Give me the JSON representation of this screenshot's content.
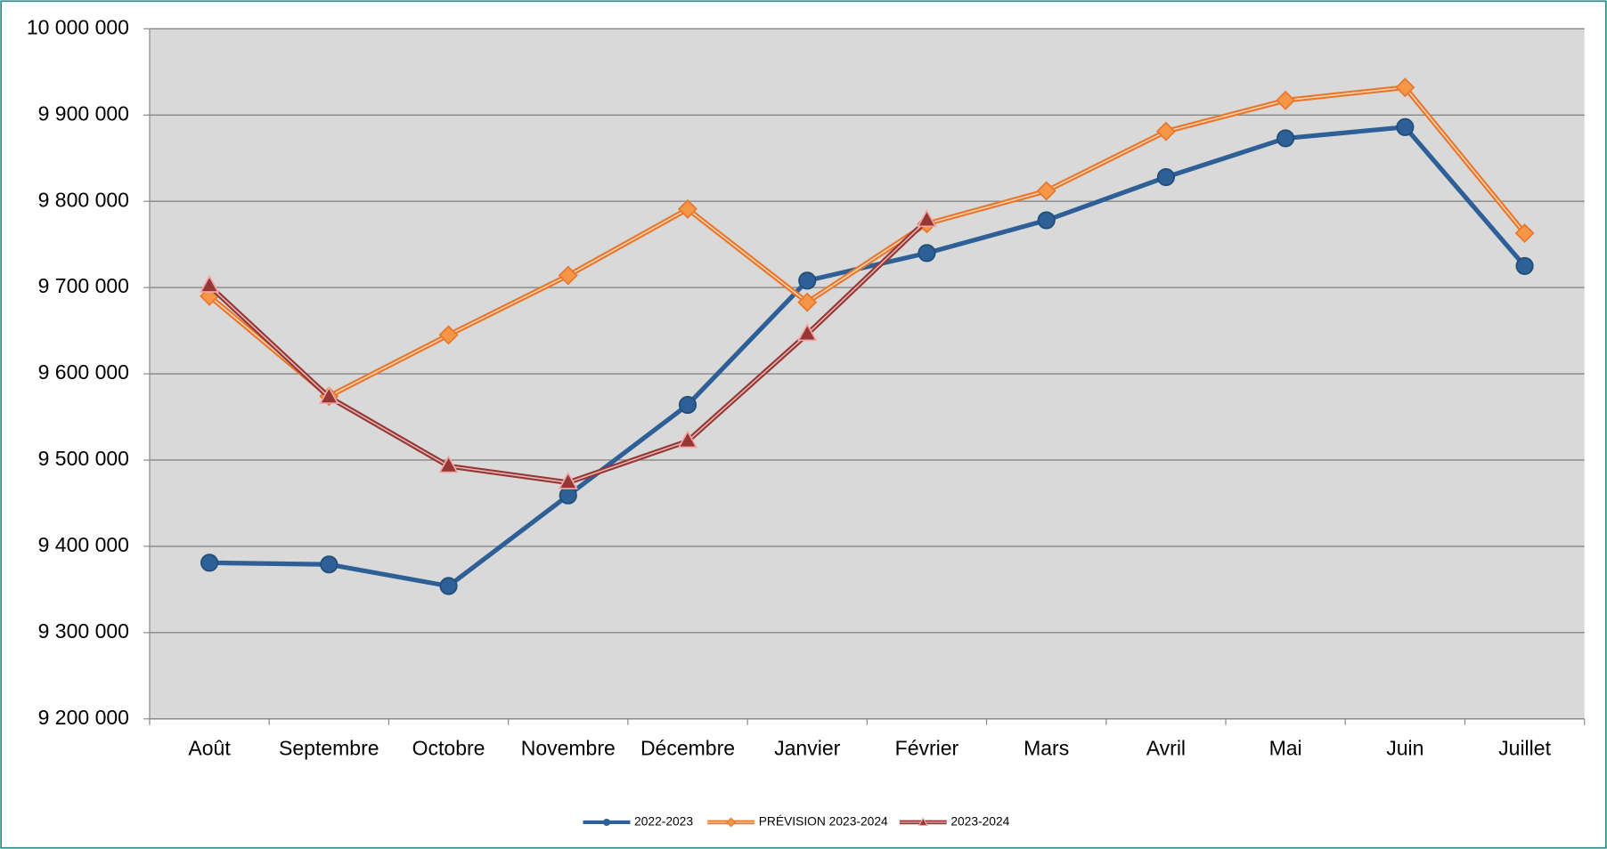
{
  "chart_data": {
    "type": "line",
    "categories": [
      "Août",
      "Septembre",
      "Octobre",
      "Novembre",
      "Décembre",
      "Janvier",
      "Février",
      "Mars",
      "Avril",
      "Mai",
      "Juin",
      "Juillet"
    ],
    "series": [
      {
        "name": "2022-2023",
        "color": "#2e5f96",
        "marker": "circle",
        "values": [
          9381000,
          9379000,
          9354000,
          9459000,
          9564000,
          9708000,
          9740000,
          9778000,
          9828000,
          9873000,
          9886000,
          9725000
        ]
      },
      {
        "name": "PRÉVISION 2023-2024",
        "color": "#e8772e",
        "marker": "diamond",
        "values": [
          9690000,
          9574000,
          9645000,
          9714000,
          9791000,
          9683000,
          9774000,
          9812000,
          9881000,
          9917000,
          9932000,
          9763000
        ]
      },
      {
        "name": "2023-2024",
        "color": "#953735",
        "marker": "triangle",
        "values": [
          9702000,
          9573000,
          9493000,
          9474000,
          9522000,
          9646000,
          9778000,
          null,
          null,
          null,
          null,
          null
        ]
      }
    ],
    "ylim": [
      9200000,
      10000000
    ],
    "yticks": [
      {
        "value": 9200000,
        "label": "9 200 000"
      },
      {
        "value": 9300000,
        "label": "9 300 000"
      },
      {
        "value": 9400000,
        "label": "9 400 000"
      },
      {
        "value": 9500000,
        "label": "9 500 000"
      },
      {
        "value": 9600000,
        "label": "9 600 000"
      },
      {
        "value": 9700000,
        "label": "9 700 000"
      },
      {
        "value": 9800000,
        "label": "9 800 000"
      },
      {
        "value": 9900000,
        "label": "9 900 000"
      },
      {
        "value": 10000000,
        "label": "10 000 000"
      }
    ],
    "grid": true,
    "legend": "bottom"
  }
}
